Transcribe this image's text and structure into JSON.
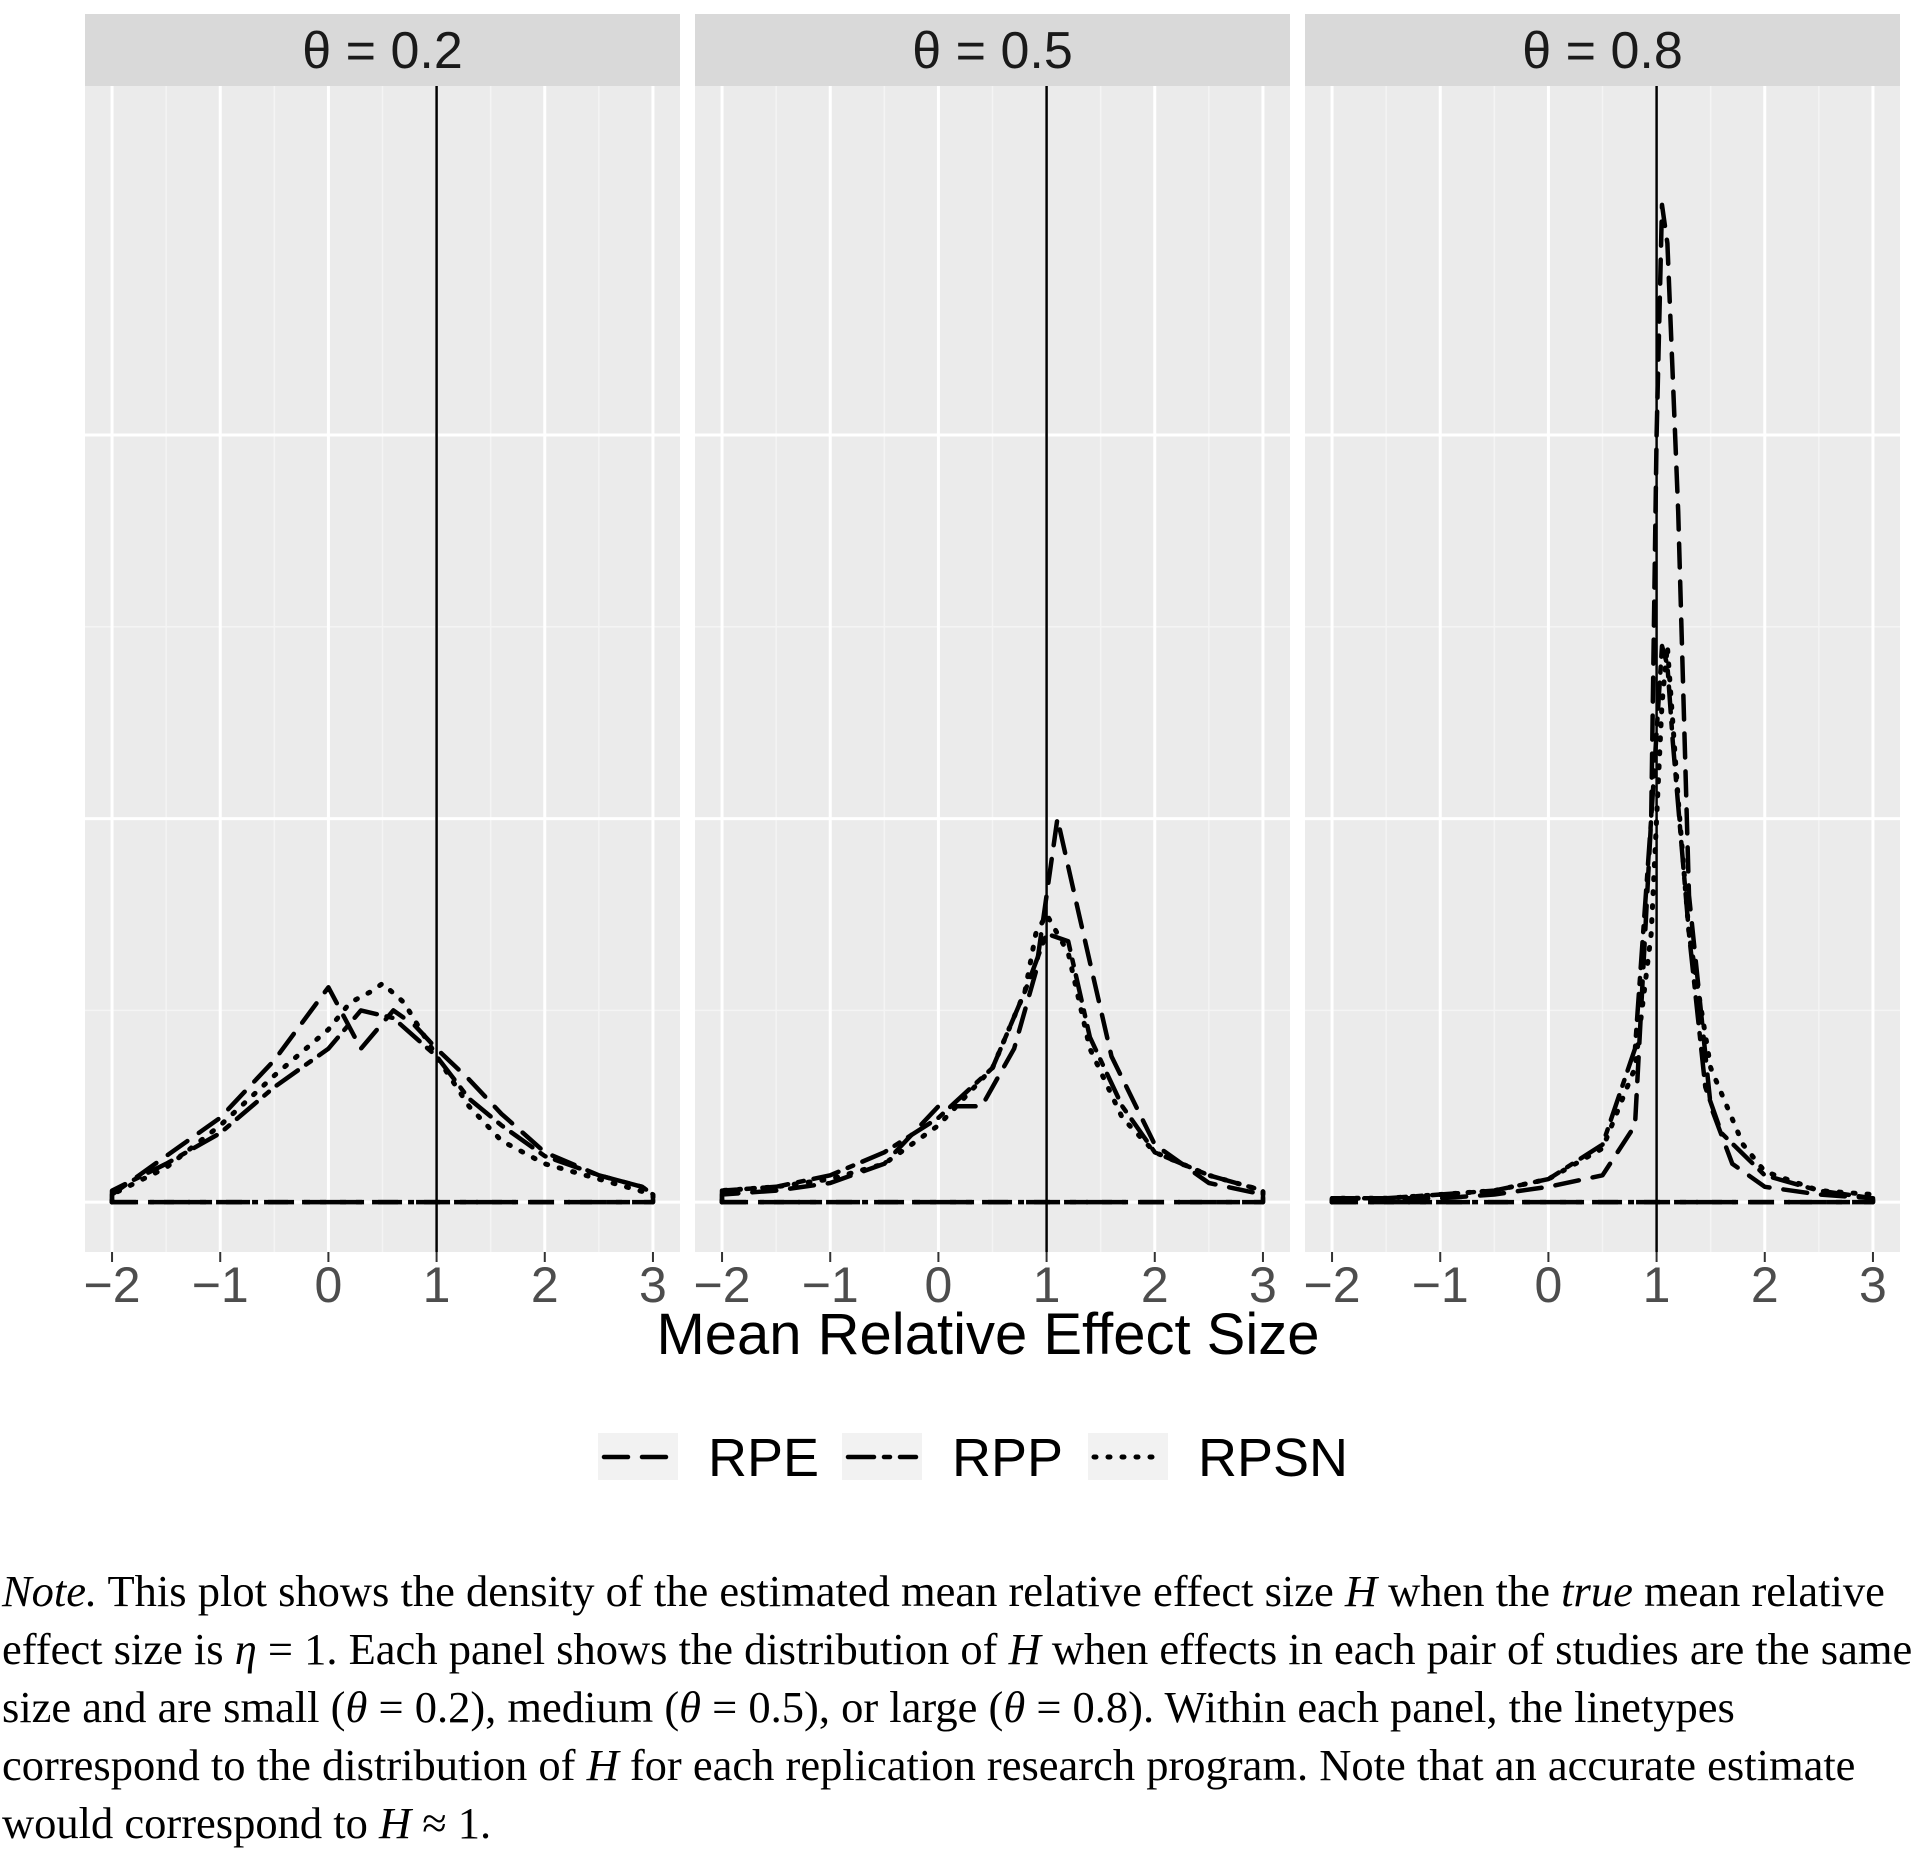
{
  "chart_data": {
    "type": "line",
    "facet_variable": "θ",
    "xlabel": "Mean Relative Effect Size",
    "xlim": [
      -2.25,
      3.25
    ],
    "xticks": [
      -2,
      -1,
      0,
      1,
      2,
      3
    ],
    "xtick_labels": [
      "−2",
      "−1",
      "0",
      "1",
      "2",
      "3"
    ],
    "ylim": [
      -0.13,
      2.91
    ],
    "yticks": [
      0,
      1,
      2
    ],
    "reference_line_x": 1,
    "grid": true,
    "legend_position": "bottom",
    "legend": [
      {
        "key": "RPE",
        "label": "RPE",
        "linetype": "dashed"
      },
      {
        "key": "RPP",
        "label": "RPP",
        "linetype": "dashdot"
      },
      {
        "key": "RPSN",
        "label": "RPSN",
        "linetype": "dotted"
      }
    ],
    "panels": [
      {
        "strip_label": "θ = 0.2",
        "series": [
          {
            "name": "RPE",
            "x": [
              -2.0,
              -1.5,
              -1.0,
              -0.5,
              0.0,
              0.3,
              0.6,
              0.8,
              1.0,
              1.3,
              1.6,
              2.0,
              2.5,
              2.9,
              3.0
            ],
            "y": [
              0.02,
              0.12,
              0.22,
              0.37,
              0.56,
              0.4,
              0.5,
              0.46,
              0.4,
              0.32,
              0.23,
              0.13,
              0.07,
              0.04,
              0.02
            ]
          },
          {
            "name": "RPP",
            "x": [
              -2.0,
              -1.5,
              -1.0,
              -0.5,
              0.0,
              0.3,
              0.6,
              0.8,
              1.0,
              1.3,
              1.6,
              2.0,
              2.5,
              2.9,
              3.0
            ],
            "y": [
              0.03,
              0.1,
              0.18,
              0.3,
              0.4,
              0.5,
              0.48,
              0.43,
              0.38,
              0.27,
              0.2,
              0.12,
              0.07,
              0.04,
              0.02
            ]
          },
          {
            "name": "RPSN",
            "x": [
              -2.0,
              -1.5,
              -1.0,
              -0.5,
              0.0,
              0.2,
              0.4,
              0.5,
              0.7,
              1.0,
              1.3,
              1.6,
              2.0,
              2.5,
              3.0
            ],
            "y": [
              0.02,
              0.09,
              0.2,
              0.33,
              0.45,
              0.52,
              0.55,
              0.57,
              0.52,
              0.38,
              0.25,
              0.16,
              0.1,
              0.06,
              0.02
            ]
          }
        ]
      },
      {
        "strip_label": "θ = 0.5",
        "series": [
          {
            "name": "RPE",
            "x": [
              -2.0,
              -1.5,
              -1.0,
              -0.5,
              0.0,
              0.4,
              0.7,
              0.9,
              1.0,
              1.1,
              1.3,
              1.6,
              2.0,
              2.5,
              3.0
            ],
            "y": [
              0.02,
              0.03,
              0.05,
              0.1,
              0.25,
              0.25,
              0.4,
              0.6,
              0.8,
              1.0,
              0.75,
              0.38,
              0.15,
              0.05,
              0.02
            ]
          },
          {
            "name": "RPP",
            "x": [
              -2.0,
              -1.5,
              -1.0,
              -0.5,
              0.0,
              0.5,
              0.8,
              1.0,
              1.2,
              1.4,
              1.7,
              2.0,
              2.5,
              3.0
            ],
            "y": [
              0.03,
              0.04,
              0.07,
              0.13,
              0.22,
              0.35,
              0.55,
              0.7,
              0.68,
              0.43,
              0.25,
              0.13,
              0.07,
              0.03
            ]
          },
          {
            "name": "RPSN",
            "x": [
              -2.0,
              -1.5,
              -1.0,
              -0.5,
              0.0,
              0.5,
              0.8,
              0.9,
              1.0,
              1.2,
              1.4,
              1.7,
              2.0,
              2.5,
              3.0
            ],
            "y": [
              0.03,
              0.04,
              0.06,
              0.1,
              0.2,
              0.35,
              0.55,
              0.7,
              0.75,
              0.65,
              0.4,
              0.22,
              0.13,
              0.07,
              0.03
            ]
          }
        ]
      },
      {
        "strip_label": "θ = 0.8",
        "series": [
          {
            "name": "RPE",
            "x": [
              -2.0,
              -1.5,
              -1.0,
              -0.5,
              0.0,
              0.5,
              0.8,
              0.95,
              1.0,
              1.05,
              1.1,
              1.2,
              1.3,
              1.5,
              1.7,
              2.0,
              2.5,
              3.0
            ],
            "y": [
              0.01,
              0.01,
              0.01,
              0.02,
              0.04,
              0.07,
              0.2,
              1.0,
              2.0,
              2.6,
              2.5,
              1.8,
              0.8,
              0.25,
              0.1,
              0.04,
              0.02,
              0.01
            ]
          },
          {
            "name": "RPP",
            "x": [
              -2.0,
              -1.5,
              -1.0,
              -0.5,
              0.0,
              0.5,
              0.8,
              0.95,
              1.05,
              1.1,
              1.15,
              1.3,
              1.45,
              1.6,
              2.0,
              2.5,
              3.0
            ],
            "y": [
              0.01,
              0.01,
              0.02,
              0.03,
              0.06,
              0.15,
              0.4,
              1.0,
              1.45,
              1.4,
              1.2,
              0.7,
              0.3,
              0.18,
              0.07,
              0.03,
              0.01
            ]
          },
          {
            "name": "RPSN",
            "x": [
              -2.0,
              -1.5,
              -1.0,
              -0.5,
              0.0,
              0.5,
              0.8,
              0.95,
              1.0,
              1.05,
              1.1,
              1.2,
              1.3,
              1.5,
              1.8,
              2.0,
              2.5,
              3.0
            ],
            "y": [
              0.01,
              0.01,
              0.02,
              0.03,
              0.06,
              0.14,
              0.35,
              0.7,
              1.0,
              1.3,
              1.45,
              1.05,
              0.7,
              0.35,
              0.15,
              0.08,
              0.03,
              0.02
            ]
          }
        ]
      }
    ]
  },
  "note": {
    "prefix": "Note.",
    "text1": " This plot shows the density of the estimated mean relative effect size ",
    "H": "H",
    "text2": " when the ",
    "true_word": "true",
    "text3": " mean relative effect size is ",
    "eta": "η",
    "text4": " = 1. Each panel shows the distribution of ",
    "text5": " when effects in each pair of studies are the same size and are small (",
    "theta": "θ",
    "text6": " = 0.2), medium (",
    "text7": " = 0.5), or large (",
    "text8": " = 0.8). Within each panel, the linetypes correspond to the distribution of ",
    "text9": " for each replication research program. Note that an accurate estimate would correspond to ",
    "text10": " ≈ 1."
  }
}
